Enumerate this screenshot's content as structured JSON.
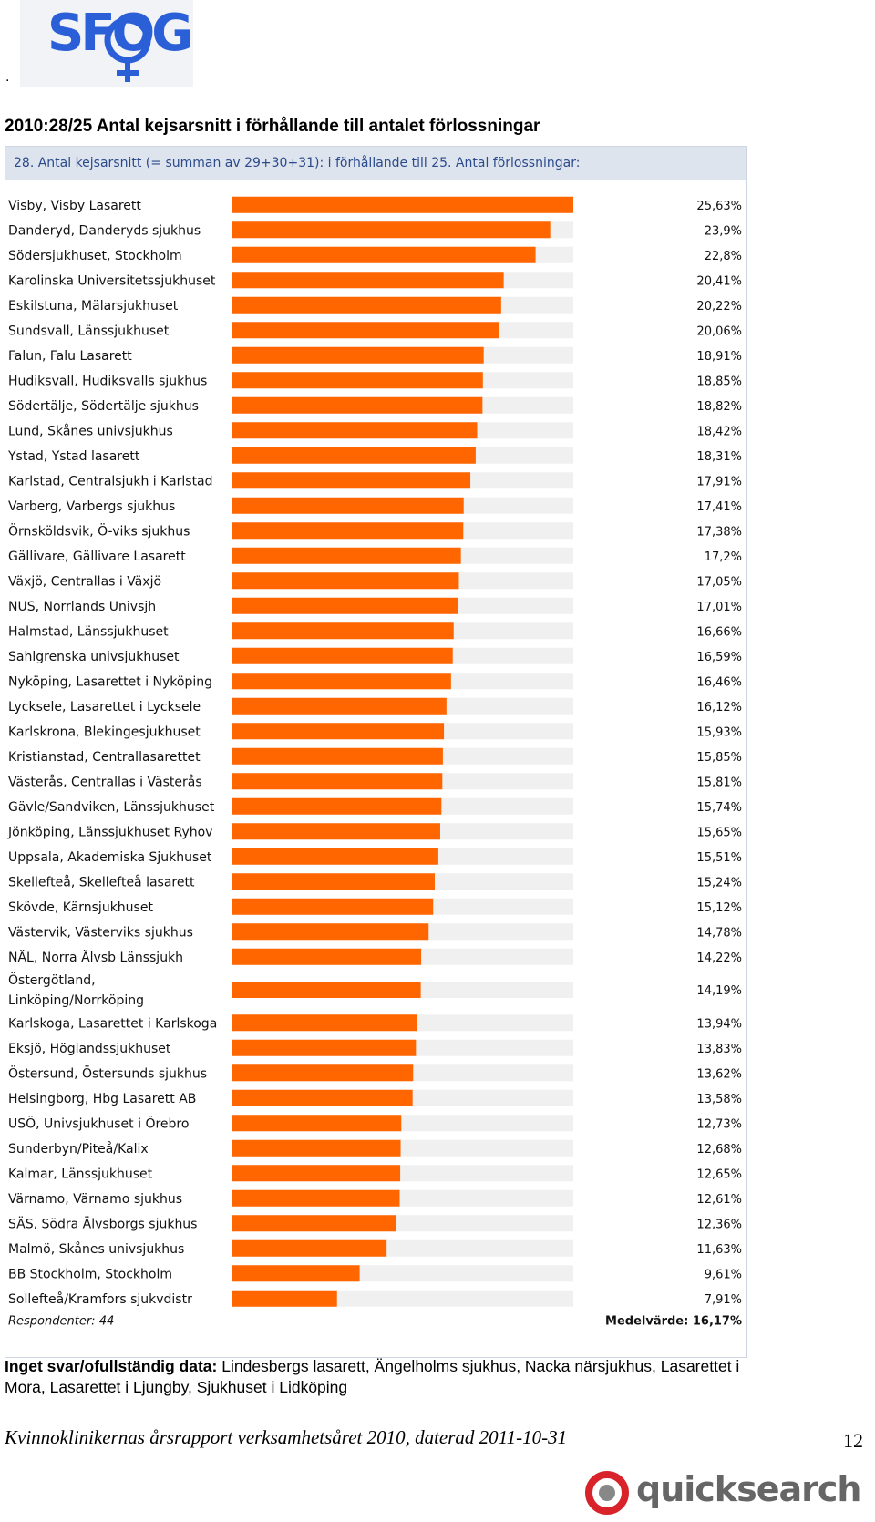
{
  "logo": {
    "text": "SFOG"
  },
  "lead_dot": ".",
  "page_title": "2010:28/25 Antal kejsarsnitt i förhållande till antalet förlossningar",
  "chart_header": "28. Antal kejsarsnitt (= summan av 29+30+31): i förhållande till  25. Antal förlossningar:",
  "chart_data": {
    "type": "bar",
    "orientation": "horizontal",
    "title": "28. Antal kejsarsnitt (= summan av 29+30+31): i förhållande till  25. Antal förlossningar:",
    "xlim": [
      0,
      25.63
    ],
    "bar_color": "#ff6600",
    "track_color": "#f0f0f0",
    "rows": [
      {
        "label": [
          "Visby, Visby Lasarett"
        ],
        "value": 25.63,
        "value_label": "25,63%"
      },
      {
        "label": [
          "Danderyd, Danderyds sjukhus"
        ],
        "value": 23.9,
        "value_label": "23,9%"
      },
      {
        "label": [
          "Södersjukhuset, Stockholm"
        ],
        "value": 22.8,
        "value_label": "22,8%"
      },
      {
        "label": [
          "Karolinska Universitetssjukhuset"
        ],
        "value": 20.41,
        "value_label": "20,41%"
      },
      {
        "label": [
          "Eskilstuna, Mälarsjukhuset"
        ],
        "value": 20.22,
        "value_label": "20,22%"
      },
      {
        "label": [
          "Sundsvall, Länssjukhuset"
        ],
        "value": 20.06,
        "value_label": "20,06%"
      },
      {
        "label": [
          "Falun, Falu Lasarett"
        ],
        "value": 18.91,
        "value_label": "18,91%"
      },
      {
        "label": [
          "Hudiksvall, Hudiksvalls sjukhus"
        ],
        "value": 18.85,
        "value_label": "18,85%"
      },
      {
        "label": [
          "Södertälje, Södertälje sjukhus"
        ],
        "value": 18.82,
        "value_label": "18,82%"
      },
      {
        "label": [
          "Lund, Skånes univsjukhus"
        ],
        "value": 18.42,
        "value_label": "18,42%"
      },
      {
        "label": [
          "Ystad, Ystad lasarett"
        ],
        "value": 18.31,
        "value_label": "18,31%"
      },
      {
        "label": [
          "Karlstad, Centralsjukh i Karlstad"
        ],
        "value": 17.91,
        "value_label": "17,91%"
      },
      {
        "label": [
          "Varberg, Varbergs sjukhus"
        ],
        "value": 17.41,
        "value_label": "17,41%"
      },
      {
        "label": [
          "Örnsköldsvik, Ö-viks sjukhus"
        ],
        "value": 17.38,
        "value_label": "17,38%"
      },
      {
        "label": [
          "Gällivare, Gällivare Lasarett"
        ],
        "value": 17.2,
        "value_label": "17,2%"
      },
      {
        "label": [
          "Växjö, Centrallas i Växjö"
        ],
        "value": 17.05,
        "value_label": "17,05%"
      },
      {
        "label": [
          "NUS, Norrlands Univsjh"
        ],
        "value": 17.01,
        "value_label": "17,01%"
      },
      {
        "label": [
          "Halmstad, Länssjukhuset"
        ],
        "value": 16.66,
        "value_label": "16,66%"
      },
      {
        "label": [
          "Sahlgrenska univsjukhuset"
        ],
        "value": 16.59,
        "value_label": "16,59%"
      },
      {
        "label": [
          "Nyköping, Lasarettet i Nyköping"
        ],
        "value": 16.46,
        "value_label": "16,46%"
      },
      {
        "label": [
          "Lycksele, Lasarettet i Lycksele"
        ],
        "value": 16.12,
        "value_label": "16,12%"
      },
      {
        "label": [
          "Karlskrona, Blekingesjukhuset"
        ],
        "value": 15.93,
        "value_label": "15,93%"
      },
      {
        "label": [
          "Kristianstad, Centrallasarettet"
        ],
        "value": 15.85,
        "value_label": "15,85%"
      },
      {
        "label": [
          "Västerås, Centrallas i Västerås"
        ],
        "value": 15.81,
        "value_label": "15,81%"
      },
      {
        "label": [
          "Gävle/Sandviken, Länssjukhuset"
        ],
        "value": 15.74,
        "value_label": "15,74%"
      },
      {
        "label": [
          "Jönköping, Länssjukhuset Ryhov"
        ],
        "value": 15.65,
        "value_label": "15,65%"
      },
      {
        "label": [
          "Uppsala, Akademiska Sjukhuset"
        ],
        "value": 15.51,
        "value_label": "15,51%"
      },
      {
        "label": [
          "Skellefteå, Skellefteå lasarett"
        ],
        "value": 15.24,
        "value_label": "15,24%"
      },
      {
        "label": [
          "Skövde, Kärnsjukhuset"
        ],
        "value": 15.12,
        "value_label": "15,12%"
      },
      {
        "label": [
          "Västervik, Västerviks sjukhus"
        ],
        "value": 14.78,
        "value_label": "14,78%"
      },
      {
        "label": [
          "NÄL, Norra Älvsb Länssjukh"
        ],
        "value": 14.22,
        "value_label": "14,22%"
      },
      {
        "label": [
          "Östergötland,",
          "Linköping/Norrköping"
        ],
        "value": 14.19,
        "value_label": "14,19%"
      },
      {
        "label": [
          "Karlskoga, Lasarettet i Karlskoga"
        ],
        "value": 13.94,
        "value_label": "13,94%"
      },
      {
        "label": [
          "Eksjö, Höglandssjukhuset"
        ],
        "value": 13.83,
        "value_label": "13,83%"
      },
      {
        "label": [
          "Östersund, Östersunds sjukhus"
        ],
        "value": 13.62,
        "value_label": "13,62%"
      },
      {
        "label": [
          "Helsingborg, Hbg Lasarett AB"
        ],
        "value": 13.58,
        "value_label": "13,58%"
      },
      {
        "label": [
          "USÖ, Univsjukhuset i Örebro"
        ],
        "value": 12.73,
        "value_label": "12,73%"
      },
      {
        "label": [
          "Sunderbyn/Piteå/Kalix"
        ],
        "value": 12.68,
        "value_label": "12,68%"
      },
      {
        "label": [
          "Kalmar, Länssjukhuset"
        ],
        "value": 12.65,
        "value_label": "12,65%"
      },
      {
        "label": [
          "Värnamo, Värnamo sjukhus"
        ],
        "value": 12.61,
        "value_label": "12,61%"
      },
      {
        "label": [
          "SÄS, Södra Älvsborgs sjukhus"
        ],
        "value": 12.36,
        "value_label": "12,36%"
      },
      {
        "label": [
          "Malmö, Skånes univsjukhus"
        ],
        "value": 11.63,
        "value_label": "11,63%"
      },
      {
        "label": [
          "BB Stockholm, Stockholm"
        ],
        "value": 9.61,
        "value_label": "9,61%"
      },
      {
        "label": [
          "Sollefteå/Kramfors sjukvdistr"
        ],
        "value": 7.91,
        "value_label": "7,91%"
      }
    ],
    "footer_left": "Respondenter: 44",
    "footer_right": "Medelvärde: 16,17%"
  },
  "no_response": {
    "label": "Inget svar/ofullständig data:",
    "text": " Lindesbergs lasarett, Ängelholms sjukhus, Nacka närsjukhus, Lasarettet i Mora, Lasarettet i Ljungby, Sjukhuset i Lidköping"
  },
  "report_line": "Kvinnoklinikernas årsrapport verksamhetsåret 2010, daterad 2011-10-31",
  "page_number": "12",
  "quicksearch_logo": {
    "text": "quicksearch"
  }
}
